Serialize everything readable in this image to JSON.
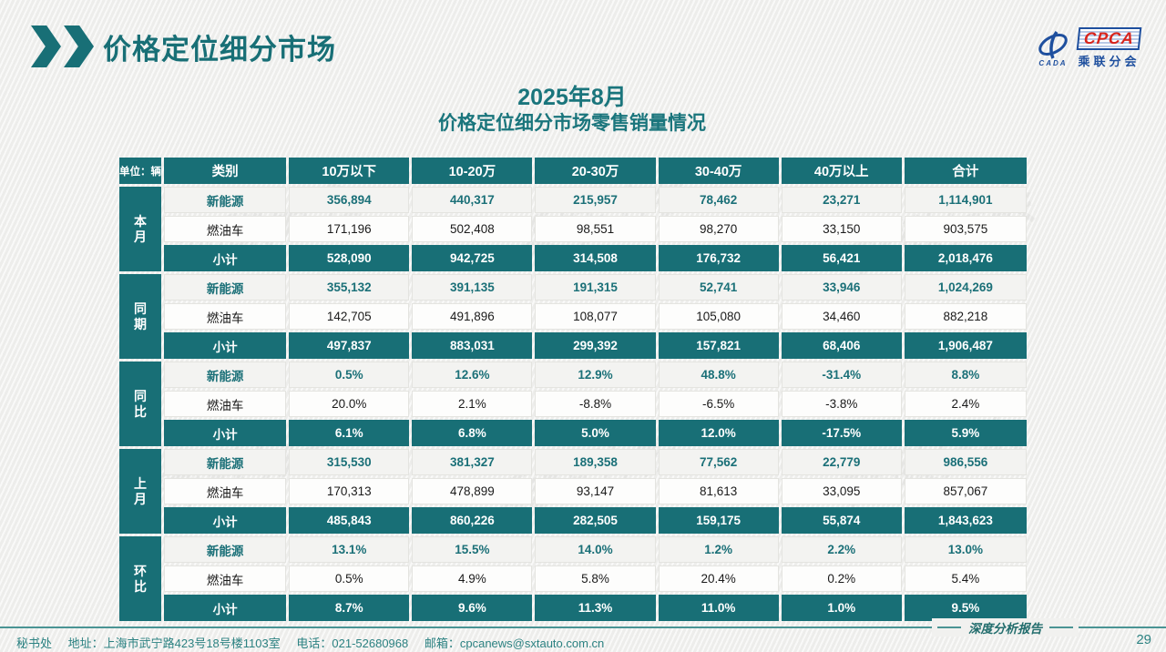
{
  "page": {
    "title": "价格定位细分市场",
    "page_number": "29"
  },
  "logo": {
    "cpca": "CPCA",
    "subtitle": "乘联分会",
    "cada": "CADA"
  },
  "report": {
    "title_line1": "2025年8月",
    "title_line2": "价格定位细分市场零售销量情况"
  },
  "watermark": {
    "text": "乘联分会"
  },
  "colors": {
    "teal": "#186f76",
    "nev_text": "#1b7078",
    "logo_blue": "#1e4f9e",
    "logo_red": "#d8251d"
  },
  "table": {
    "unit_label": "单位：辆",
    "category_header": "类别",
    "columns": [
      "10万以下",
      "10-20万",
      "20-30万",
      "30-40万",
      "40万以上",
      "合计"
    ],
    "groups": [
      {
        "label": "本月",
        "rows": [
          {
            "category": "新能源",
            "type": "nev",
            "values": [
              "356,894",
              "440,317",
              "215,957",
              "78,462",
              "23,271",
              "1,114,901"
            ]
          },
          {
            "category": "燃油车",
            "type": "ice",
            "values": [
              "171,196",
              "502,408",
              "98,551",
              "98,270",
              "33,150",
              "903,575"
            ]
          },
          {
            "category": "小计",
            "type": "subtotal",
            "values": [
              "528,090",
              "942,725",
              "314,508",
              "176,732",
              "56,421",
              "2,018,476"
            ]
          }
        ]
      },
      {
        "label": "同期",
        "rows": [
          {
            "category": "新能源",
            "type": "nev",
            "values": [
              "355,132",
              "391,135",
              "191,315",
              "52,741",
              "33,946",
              "1,024,269"
            ]
          },
          {
            "category": "燃油车",
            "type": "ice",
            "values": [
              "142,705",
              "491,896",
              "108,077",
              "105,080",
              "34,460",
              "882,218"
            ]
          },
          {
            "category": "小计",
            "type": "subtotal",
            "values": [
              "497,837",
              "883,031",
              "299,392",
              "157,821",
              "68,406",
              "1,906,487"
            ]
          }
        ]
      },
      {
        "label": "同比",
        "rows": [
          {
            "category": "新能源",
            "type": "nev",
            "values": [
              "0.5%",
              "12.6%",
              "12.9%",
              "48.8%",
              "-31.4%",
              "8.8%"
            ]
          },
          {
            "category": "燃油车",
            "type": "ice",
            "values": [
              "20.0%",
              "2.1%",
              "-8.8%",
              "-6.5%",
              "-3.8%",
              "2.4%"
            ]
          },
          {
            "category": "小计",
            "type": "subtotal",
            "values": [
              "6.1%",
              "6.8%",
              "5.0%",
              "12.0%",
              "-17.5%",
              "5.9%"
            ]
          }
        ]
      },
      {
        "label": "上月",
        "rows": [
          {
            "category": "新能源",
            "type": "nev",
            "values": [
              "315,530",
              "381,327",
              "189,358",
              "77,562",
              "22,779",
              "986,556"
            ]
          },
          {
            "category": "燃油车",
            "type": "ice",
            "values": [
              "170,313",
              "478,899",
              "93,147",
              "81,613",
              "33,095",
              "857,067"
            ]
          },
          {
            "category": "小计",
            "type": "subtotal",
            "values": [
              "485,843",
              "860,226",
              "282,505",
              "159,175",
              "55,874",
              "1,843,623"
            ]
          }
        ]
      },
      {
        "label": "环比",
        "rows": [
          {
            "category": "新能源",
            "type": "nev",
            "values": [
              "13.1%",
              "15.5%",
              "14.0%",
              "1.2%",
              "2.2%",
              "13.0%"
            ]
          },
          {
            "category": "燃油车",
            "type": "ice",
            "values": [
              "0.5%",
              "4.9%",
              "5.8%",
              "20.4%",
              "0.2%",
              "5.4%"
            ]
          },
          {
            "category": "小计",
            "type": "subtotal",
            "values": [
              "8.7%",
              "9.6%",
              "11.3%",
              "11.0%",
              "1.0%",
              "9.5%"
            ]
          }
        ]
      }
    ]
  },
  "footer": {
    "secretariat": "秘书处",
    "address": "地址：上海市武宁路423号18号楼1103室",
    "phone": "电话：021-52680968",
    "email": "邮箱：cpcanews@sxtauto.com.cn",
    "report_type": "深度分析报告"
  }
}
